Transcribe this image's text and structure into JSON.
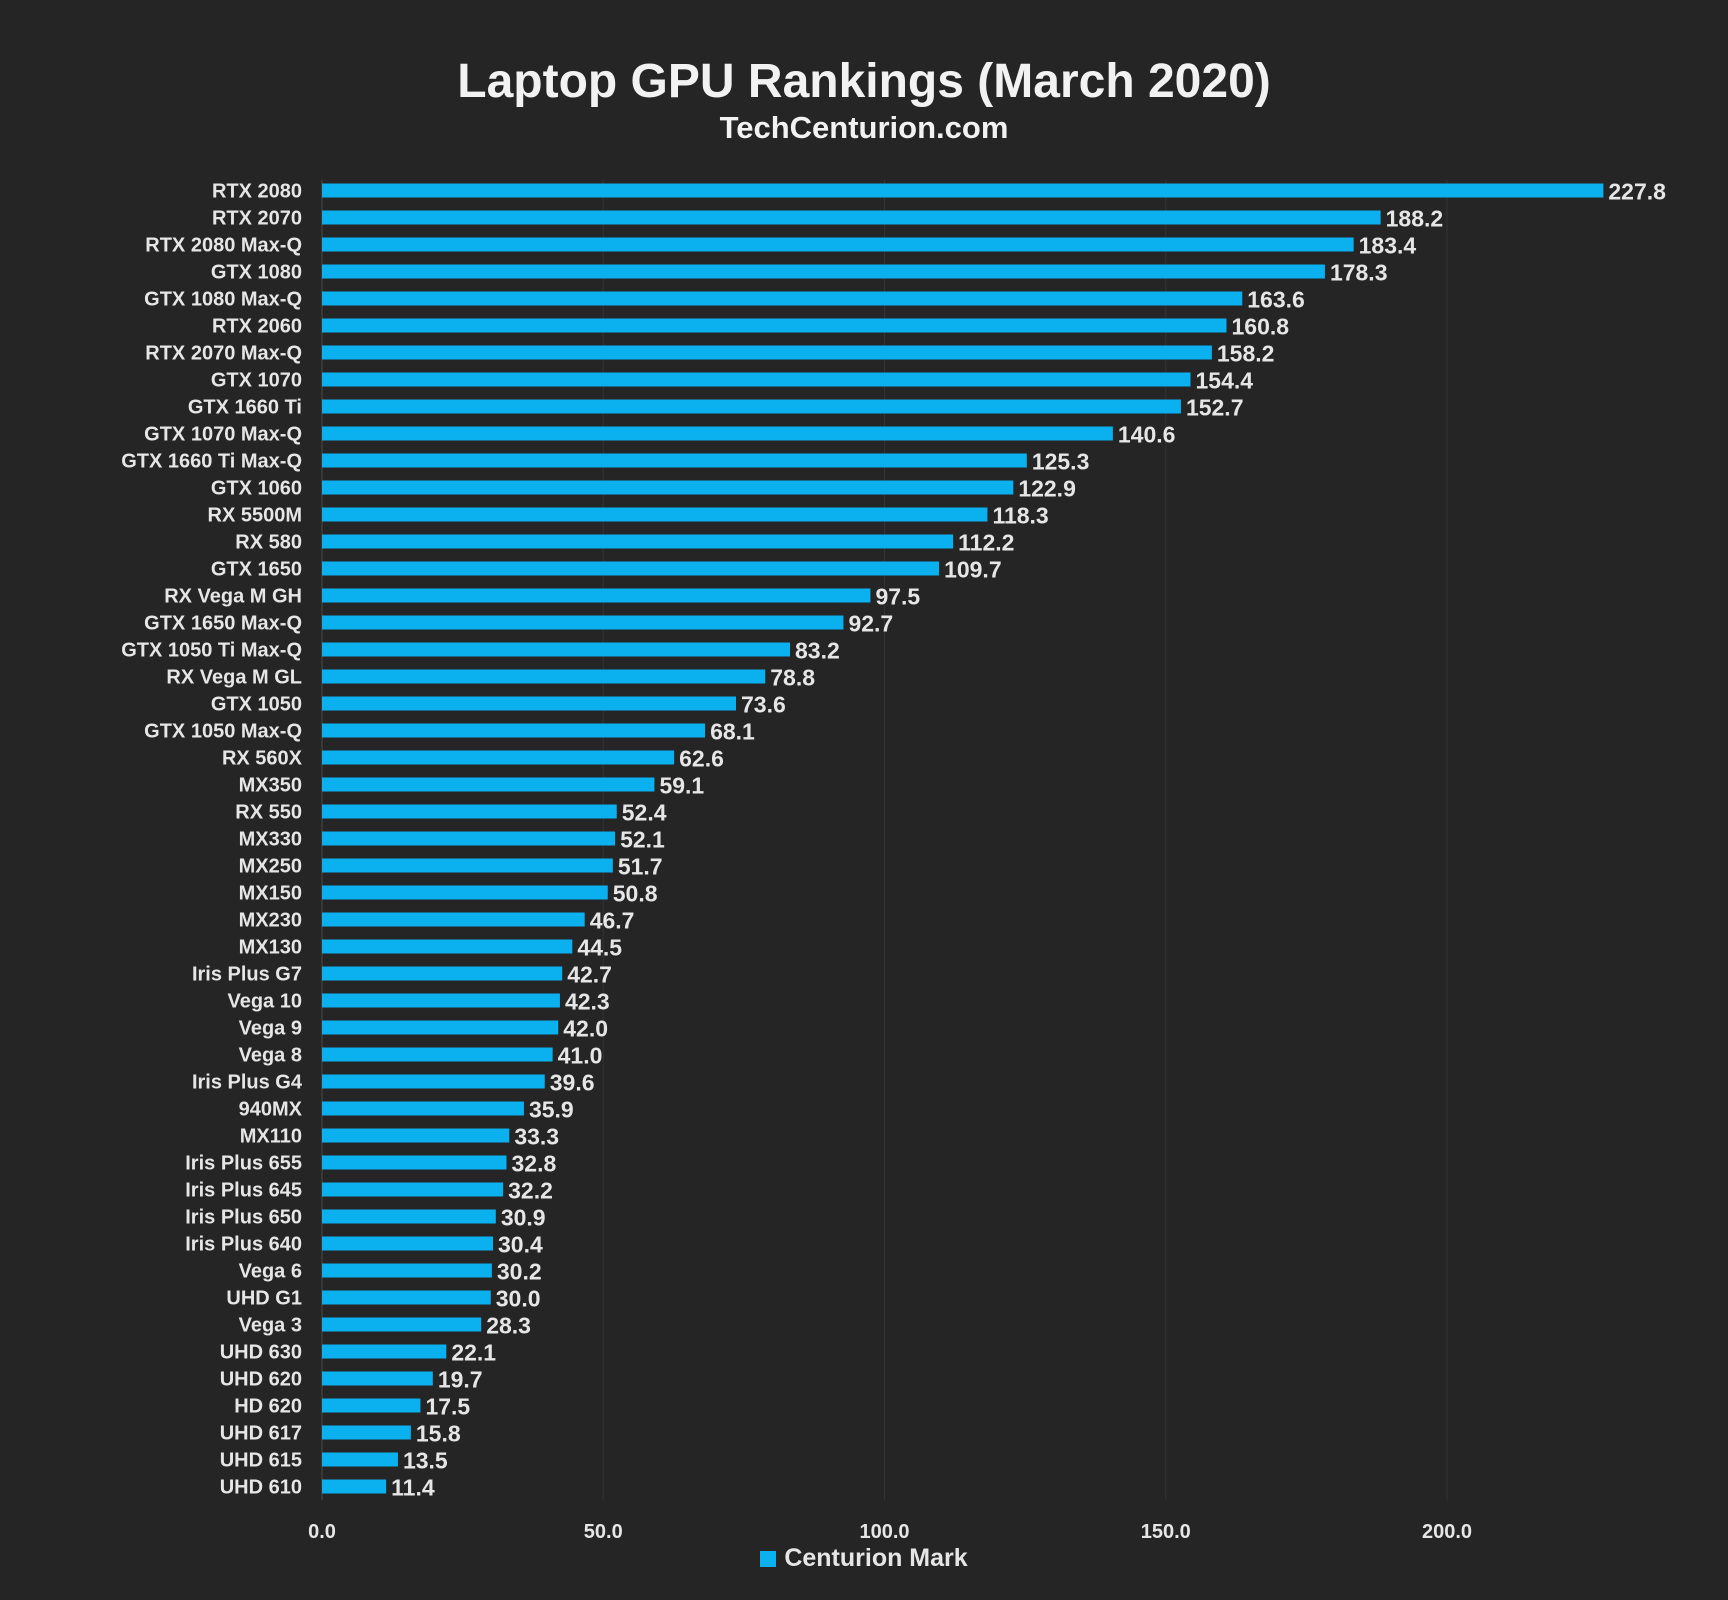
{
  "chart_data": {
    "type": "bar",
    "orientation": "horizontal",
    "title": "Laptop GPU Rankings (March 2020)",
    "subtitle": "TechCenturion.com",
    "xlabel": "",
    "ylabel": "",
    "xlim": [
      0,
      228
    ],
    "x_ticks": [
      "0.0",
      "50.0",
      "100.0",
      "150.0",
      "200.0"
    ],
    "x_tick_values": [
      0,
      50,
      100,
      150,
      200
    ],
    "grid": true,
    "legend": "bottom",
    "bar_color": "#0bb0ef",
    "series": [
      {
        "name": "Centurion Mark"
      }
    ],
    "categories": [
      "RTX 2080",
      "RTX 2070",
      "RTX 2080 Max-Q",
      "GTX 1080",
      "GTX 1080 Max-Q",
      "RTX 2060",
      "RTX 2070 Max-Q",
      "GTX 1070",
      "GTX 1660 Ti",
      "GTX 1070 Max-Q",
      "GTX 1660 Ti Max-Q",
      "GTX 1060",
      "RX 5500M",
      "RX 580",
      "GTX 1650",
      "RX Vega M GH",
      "GTX 1650 Max-Q",
      "GTX 1050 Ti Max-Q",
      "RX Vega M GL",
      "GTX 1050",
      "GTX 1050 Max-Q",
      "RX 560X",
      "MX350",
      "RX 550",
      "MX330",
      "MX250",
      "MX150",
      "MX230",
      "MX130",
      "Iris Plus G7",
      "Vega 10",
      "Vega 9",
      "Vega 8",
      "Iris Plus G4",
      "940MX",
      "MX110",
      "Iris Plus 655",
      "Iris Plus 645",
      "Iris Plus 650",
      "Iris Plus 640",
      "Vega 6",
      "UHD G1",
      "Vega 3",
      "UHD 630",
      "UHD 620",
      "HD 620",
      "UHD 617",
      "UHD 615",
      "UHD 610"
    ],
    "values": [
      227.8,
      188.2,
      183.4,
      178.3,
      163.6,
      160.8,
      158.2,
      154.4,
      152.7,
      140.6,
      125.3,
      122.9,
      118.3,
      112.2,
      109.7,
      97.5,
      92.7,
      83.2,
      78.8,
      73.6,
      68.1,
      62.6,
      59.1,
      52.4,
      52.1,
      51.7,
      50.8,
      46.7,
      44.5,
      42.7,
      42.3,
      42.0,
      41.0,
      39.6,
      35.9,
      33.3,
      32.8,
      32.2,
      30.9,
      30.4,
      30.2,
      30.0,
      28.3,
      22.1,
      19.7,
      17.5,
      15.8,
      13.5,
      11.4
    ],
    "value_labels": [
      "227.8",
      "188.2",
      "183.4",
      "178.3",
      "163.6",
      "160.8",
      "158.2",
      "154.4",
      "152.7",
      "140.6",
      "125.3",
      "122.9",
      "118.3",
      "112.2",
      "109.7",
      "97.5",
      "92.7",
      "83.2",
      "78.8",
      "73.6",
      "68.1",
      "62.6",
      "59.1",
      "52.4",
      "52.1",
      "51.7",
      "50.8",
      "46.7",
      "44.5",
      "42.7",
      "42.3",
      "42.0",
      "41.0",
      "39.6",
      "35.9",
      "33.3",
      "32.8",
      "32.2",
      "30.9",
      "30.4",
      "30.2",
      "30.0",
      "28.3",
      "22.1",
      "19.7",
      "17.5",
      "15.8",
      "13.5",
      "11.4"
    ]
  }
}
